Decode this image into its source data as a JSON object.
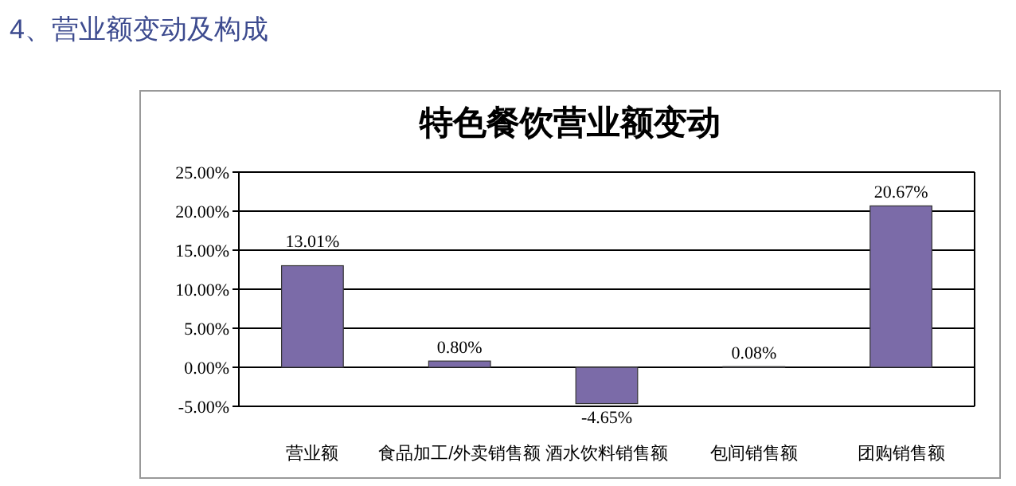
{
  "chart_data": {
    "type": "bar",
    "title": "特色餐饮营业额变动",
    "annotations": [
      "4、营业额变动及构成"
    ],
    "categories": [
      "营业额",
      "食品加工/外卖销售额",
      "酒水饮料销售额",
      "包间销售额",
      "团购销售额"
    ],
    "values": [
      13.01,
      0.8,
      -4.65,
      0.08,
      20.67
    ],
    "value_labels": [
      "13.01%",
      "0.80%",
      "-4.65%",
      "0.08%",
      "20.67%"
    ],
    "color": "#7b6ba8",
    "ylim": [
      -5,
      25
    ],
    "yticks": [
      {
        "value": -5,
        "label": "-5.00%"
      },
      {
        "value": 0,
        "label": "0.00%"
      },
      {
        "value": 5,
        "label": "5.00%"
      },
      {
        "value": 10,
        "label": "10.00%"
      },
      {
        "value": 15,
        "label": "15.00%"
      },
      {
        "value": 20,
        "label": "20.00%"
      },
      {
        "value": 25,
        "label": "25.00%"
      }
    ],
    "grid": "y"
  }
}
